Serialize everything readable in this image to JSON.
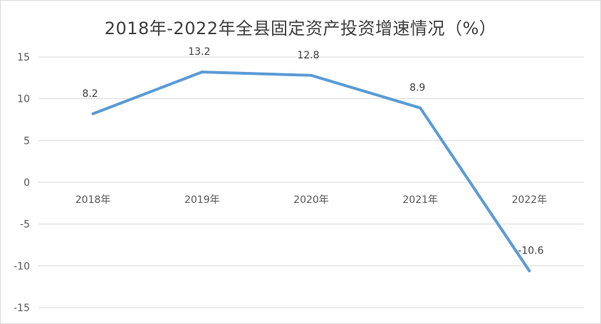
{
  "chart_data": {
    "type": "line",
    "title": "2018年-2022年全县固定资产投资增速情况（%）",
    "categories": [
      "2018年",
      "2019年",
      "2020年",
      "2021年",
      "2022年"
    ],
    "series": [
      {
        "values": [
          8.2,
          13.2,
          12.8,
          8.9,
          -10.6
        ],
        "data_labels": [
          "8.2",
          "13.2",
          "12.8",
          "8.9",
          "-10.6"
        ]
      }
    ],
    "ylim": [
      -15,
      15
    ],
    "yticks": [
      15,
      10,
      5,
      0,
      -5,
      -10,
      -15
    ],
    "grid": true,
    "legend": "none",
    "colors": {
      "line": "#5b9bd5",
      "grid": "#d9d9d9",
      "text": "#595959"
    }
  }
}
